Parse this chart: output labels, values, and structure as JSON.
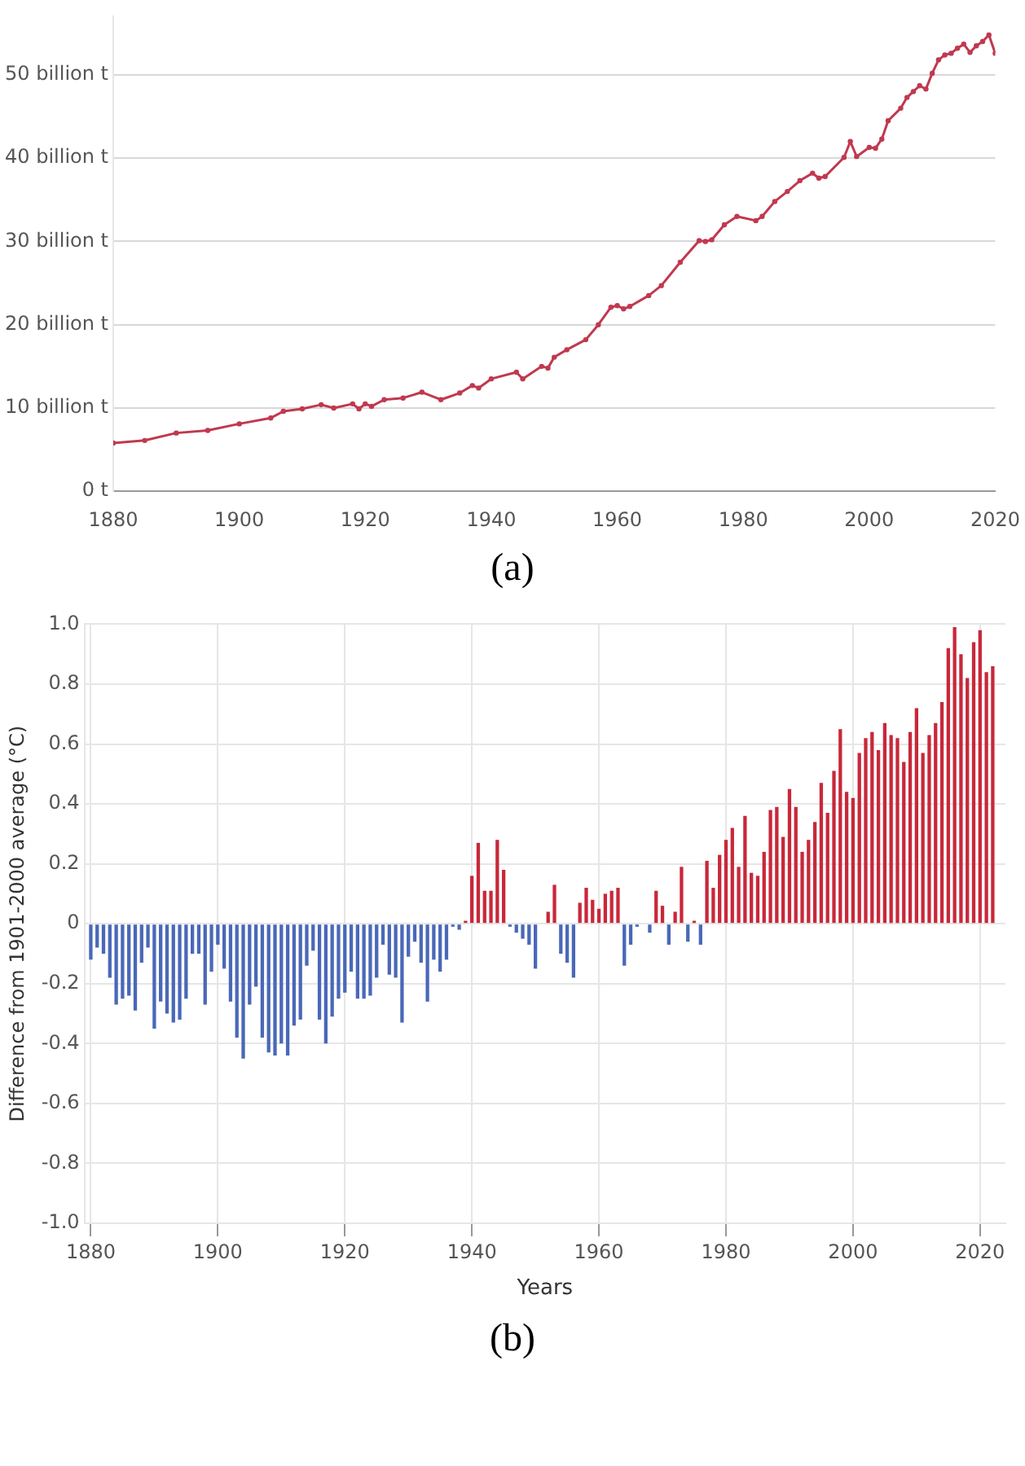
{
  "chart_data": [
    {
      "type": "line",
      "annotations": [
        "(a)"
      ],
      "x": [
        1880,
        1885,
        1890,
        1895,
        1900,
        1905,
        1907,
        1910,
        1913,
        1915,
        1918,
        1919,
        1920,
        1921,
        1923,
        1926,
        1929,
        1932,
        1935,
        1937,
        1938,
        1940,
        1944,
        1945,
        1948,
        1949,
        1950,
        1952,
        1955,
        1957,
        1959,
        1960,
        1961,
        1962,
        1965,
        1967,
        1970,
        1973,
        1974,
        1975,
        1977,
        1979,
        1982,
        1983,
        1985,
        1987,
        1989,
        1991,
        1992,
        1993,
        1996,
        1997,
        1998,
        2000,
        2001,
        2002,
        2003,
        2005,
        2006,
        2007,
        2008,
        2009,
        2010,
        2011,
        2012,
        2013,
        2014,
        2015,
        2016,
        2017,
        2018,
        2019,
        2020
      ],
      "series": [
        {
          "color": "#c0394f",
          "values": [
            5.8,
            6.1,
            7.0,
            7.3,
            8.1,
            8.8,
            9.6,
            9.9,
            10.4,
            10.0,
            10.5,
            9.9,
            10.5,
            10.2,
            11.0,
            11.2,
            11.9,
            11.0,
            11.8,
            12.7,
            12.4,
            13.5,
            14.3,
            13.5,
            15.0,
            14.8,
            16.1,
            17.0,
            18.2,
            20.0,
            22.1,
            22.3,
            21.9,
            22.2,
            23.5,
            24.7,
            27.5,
            30.1,
            30.0,
            30.2,
            32.0,
            33.0,
            32.5,
            33.0,
            34.8,
            36.0,
            37.3,
            38.2,
            37.6,
            37.8,
            40.1,
            42.0,
            40.2,
            41.3,
            41.2,
            42.3,
            44.5,
            46.0,
            47.3,
            48.0,
            48.7,
            48.3,
            50.2,
            51.8,
            52.4,
            52.6,
            53.2,
            53.7,
            52.7,
            53.5,
            54.0,
            54.8,
            52.6
          ]
        }
      ],
      "xlim": [
        1880,
        2020
      ],
      "xticks": [
        1880,
        1900,
        1920,
        1940,
        1960,
        1980,
        2000,
        2020
      ],
      "ylim": [
        0,
        57
      ],
      "yticks": [
        {
          "value": 0,
          "label": "0 t"
        },
        {
          "value": 10,
          "label": "10 billion t"
        },
        {
          "value": 20,
          "label": "20 billion t"
        },
        {
          "value": 30,
          "label": "30 billion t"
        },
        {
          "value": 40,
          "label": "40 billion t"
        },
        {
          "value": 50,
          "label": "50 billion t"
        }
      ],
      "grid": "y",
      "marker": "circle",
      "line_style": "solid"
    },
    {
      "type": "bar",
      "annotations": [
        "(b)"
      ],
      "xlabel": "Years",
      "ylabel": "Difference from 1901-2000 average (°C)",
      "x": [
        1880,
        1881,
        1882,
        1883,
        1884,
        1885,
        1886,
        1887,
        1888,
        1889,
        1890,
        1891,
        1892,
        1893,
        1894,
        1895,
        1896,
        1897,
        1898,
        1899,
        1900,
        1901,
        1902,
        1903,
        1904,
        1905,
        1906,
        1907,
        1908,
        1909,
        1910,
        1911,
        1912,
        1913,
        1914,
        1915,
        1916,
        1917,
        1918,
        1919,
        1920,
        1921,
        1922,
        1923,
        1924,
        1925,
        1926,
        1927,
        1928,
        1929,
        1930,
        1931,
        1932,
        1933,
        1934,
        1935,
        1936,
        1937,
        1938,
        1939,
        1940,
        1941,
        1942,
        1943,
        1944,
        1945,
        1946,
        1947,
        1948,
        1949,
        1950,
        1951,
        1952,
        1953,
        1954,
        1955,
        1956,
        1957,
        1958,
        1959,
        1960,
        1961,
        1962,
        1963,
        1964,
        1965,
        1966,
        1967,
        1968,
        1969,
        1970,
        1971,
        1972,
        1973,
        1974,
        1975,
        1976,
        1977,
        1978,
        1979,
        1980,
        1981,
        1982,
        1983,
        1984,
        1985,
        1986,
        1987,
        1988,
        1989,
        1990,
        1991,
        1992,
        1993,
        1994,
        1995,
        1996,
        1997,
        1998,
        1999,
        2000,
        2001,
        2002,
        2003,
        2004,
        2005,
        2006,
        2007,
        2008,
        2009,
        2010,
        2011,
        2012,
        2013,
        2014,
        2015,
        2016,
        2017,
        2018,
        2019,
        2020,
        2021,
        2022
      ],
      "values": [
        -0.12,
        -0.08,
        -0.1,
        -0.18,
        -0.27,
        -0.25,
        -0.24,
        -0.29,
        -0.13,
        -0.08,
        -0.35,
        -0.26,
        -0.3,
        -0.33,
        -0.32,
        -0.25,
        -0.1,
        -0.1,
        -0.27,
        -0.16,
        -0.07,
        -0.15,
        -0.26,
        -0.38,
        -0.45,
        -0.27,
        -0.21,
        -0.38,
        -0.43,
        -0.44,
        -0.4,
        -0.44,
        -0.34,
        -0.32,
        -0.14,
        -0.09,
        -0.32,
        -0.4,
        -0.31,
        -0.25,
        -0.23,
        -0.16,
        -0.25,
        -0.25,
        -0.24,
        -0.18,
        -0.07,
        -0.17,
        -0.18,
        -0.33,
        -0.11,
        -0.06,
        -0.13,
        -0.26,
        -0.12,
        -0.16,
        -0.12,
        -0.01,
        -0.02,
        0.01,
        0.16,
        0.27,
        0.11,
        0.11,
        0.28,
        0.18,
        -0.01,
        -0.03,
        -0.05,
        -0.07,
        -0.15,
        0,
        0.04,
        0.13,
        -0.1,
        -0.13,
        -0.18,
        0.07,
        0.12,
        0.08,
        0.05,
        0.1,
        0.11,
        0.12,
        -0.14,
        -0.07,
        -0.01,
        0,
        -0.03,
        0.11,
        0.06,
        -0.07,
        0.04,
        0.19,
        -0.06,
        0.01,
        -0.07,
        0.21,
        0.12,
        0.23,
        0.28,
        0.32,
        0.19,
        0.36,
        0.17,
        0.16,
        0.24,
        0.38,
        0.39,
        0.29,
        0.45,
        0.39,
        0.24,
        0.28,
        0.34,
        0.47,
        0.37,
        0.51,
        0.65,
        0.44,
        0.42,
        0.57,
        0.62,
        0.64,
        0.58,
        0.67,
        0.63,
        0.62,
        0.54,
        0.64,
        0.72,
        0.57,
        0.63,
        0.67,
        0.74,
        0.92,
        0.99,
        0.9,
        0.82,
        0.94,
        0.98,
        0.84,
        0.86
      ],
      "colors": [
        "#4a68b8",
        "#4a68b8",
        "#4a68b8",
        "#4a68b8",
        "#4a68b8",
        "#4a68b8",
        "#4a68b8",
        "#4a68b8",
        "#4a68b8",
        "#4a68b8",
        "#4a68b8",
        "#4a68b8",
        "#4a68b8",
        "#4a68b8",
        "#4a68b8",
        "#4a68b8",
        "#4a68b8",
        "#4a68b8",
        "#4a68b8",
        "#4a68b8",
        "#4a68b8",
        "#4a68b8",
        "#4a68b8",
        "#4a68b8",
        "#4a68b8",
        "#4a68b8",
        "#4a68b8",
        "#4a68b8",
        "#4a68b8",
        "#4a68b8",
        "#4a68b8",
        "#4a68b8",
        "#4a68b8",
        "#4a68b8",
        "#4a68b8",
        "#4a68b8",
        "#4a68b8",
        "#4a68b8",
        "#4a68b8",
        "#4a68b8",
        "#4a68b8",
        "#4a68b8",
        "#4a68b8",
        "#4a68b8",
        "#4a68b8",
        "#4a68b8",
        "#4a68b8",
        "#4a68b8",
        "#4a68b8",
        "#4a68b8",
        "#4a68b8",
        "#4a68b8",
        "#4a68b8",
        "#4a68b8",
        "#4a68b8",
        "#4a68b8",
        "#4a68b8",
        "#4a68b8",
        "#4a68b8",
        "#c8283a",
        "#c8283a",
        "#c8283a",
        "#c8283a",
        "#c8283a",
        "#c8283a",
        "#c8283a",
        "#4a68b8",
        "#4a68b8",
        "#4a68b8",
        "#4a68b8",
        "#4a68b8",
        "#4a68b8",
        "#c8283a",
        "#c8283a",
        "#4a68b8",
        "#4a68b8",
        "#4a68b8",
        "#c8283a",
        "#c8283a",
        "#c8283a",
        "#c8283a",
        "#c8283a",
        "#c8283a",
        "#c8283a",
        "#4a68b8",
        "#4a68b8",
        "#4a68b8",
        "#4a68b8",
        "#4a68b8",
        "#c8283a",
        "#c8283a",
        "#4a68b8",
        "#c8283a",
        "#c8283a",
        "#4a68b8",
        "#c8283a",
        "#4a68b8",
        "#c8283a",
        "#c8283a",
        "#c8283a",
        "#c8283a",
        "#c8283a",
        "#c8283a",
        "#c8283a",
        "#c8283a",
        "#c8283a",
        "#c8283a",
        "#c8283a",
        "#c8283a",
        "#c8283a",
        "#c8283a",
        "#c8283a",
        "#c8283a",
        "#c8283a",
        "#c8283a",
        "#c8283a",
        "#c8283a",
        "#c8283a",
        "#c8283a",
        "#c8283a",
        "#c8283a",
        "#c8283a",
        "#c8283a",
        "#c8283a",
        "#c8283a",
        "#c8283a",
        "#c8283a",
        "#c8283a",
        "#c8283a",
        "#c8283a",
        "#c8283a",
        "#c8283a",
        "#c8283a",
        "#c8283a",
        "#c8283a",
        "#c8283a",
        "#c8283a",
        "#c8283a",
        "#c8283a",
        "#c8283a",
        "#c8283a",
        "#c8283a",
        "#c8283a"
      ],
      "xlim": [
        1879,
        2024
      ],
      "xticks": [
        1880,
        1900,
        1920,
        1940,
        1960,
        1980,
        2000,
        2020
      ],
      "ylim": [
        -1,
        1
      ],
      "yticks": [
        {
          "value": -1,
          "label": "-1.0"
        },
        -0.8,
        -0.6,
        -0.4,
        -0.2,
        0,
        0.2,
        0.4,
        0.6,
        0.8,
        {
          "value": 1,
          "label": "1.0"
        }
      ],
      "grid": true
    }
  ]
}
